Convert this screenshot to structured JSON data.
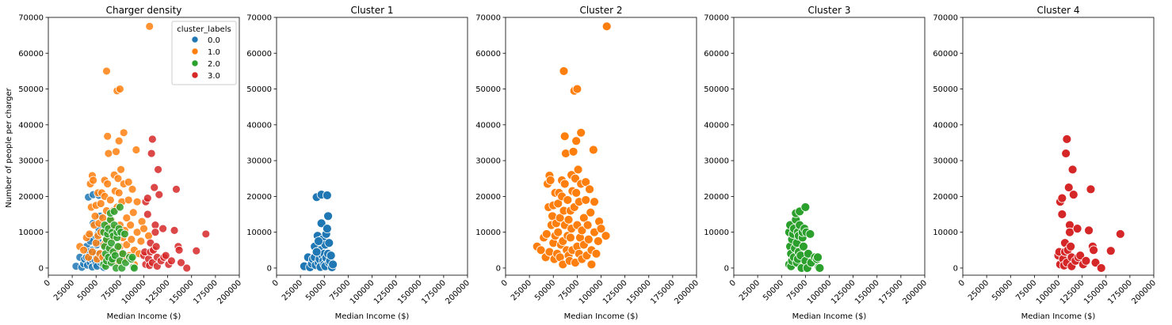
{
  "figure": {
    "ylabel": "Number of people per charger"
  },
  "legend": {
    "title": "cluster_labels",
    "entries": [
      {
        "label": "0.0",
        "color": "#1f77b4"
      },
      {
        "label": "1.0",
        "color": "#ff7f0e"
      },
      {
        "label": "2.0",
        "color": "#2ca02c"
      },
      {
        "label": "3.0",
        "color": "#d62728"
      }
    ]
  },
  "chart_data": [
    {
      "type": "scatter",
      "title": "Charger density",
      "xlabel": "Median Income ($)",
      "ylabel": "Number of people per charger",
      "xlim": [
        0,
        200000
      ],
      "ylim": [
        -2000,
        70000
      ],
      "xticks": [
        "0",
        "25000",
        "50000",
        "75000",
        "100000",
        "125000",
        "150000",
        "175000",
        "200000"
      ],
      "yticks": [
        "0",
        "10000",
        "20000",
        "30000",
        "40000",
        "50000",
        "60000",
        "70000"
      ],
      "legend": "upper-right",
      "series": [
        {
          "name": "0.0",
          "cluster": 0,
          "color": "#1f77b4"
        },
        {
          "name": "1.0",
          "cluster": 1,
          "color": "#ff7f0e"
        },
        {
          "name": "2.0",
          "cluster": 2,
          "color": "#2ca02c"
        },
        {
          "name": "3.0",
          "cluster": 3,
          "color": "#d62728"
        }
      ]
    },
    {
      "type": "scatter",
      "title": "Cluster 1",
      "xlabel": "Median Income ($)",
      "xlim": [
        0,
        200000
      ],
      "ylim": [
        -2000,
        70000
      ],
      "cluster": 0,
      "color": "#1f77b4",
      "xticks": [
        "0",
        "25000",
        "50000",
        "75000",
        "100000",
        "125000",
        "150000",
        "175000",
        "200000"
      ],
      "yticks": [
        "0",
        "10000",
        "20000",
        "30000",
        "40000",
        "50000",
        "60000",
        "70000"
      ],
      "points": [
        [
          29000,
          500
        ],
        [
          33000,
          3000
        ],
        [
          35000,
          200
        ],
        [
          37000,
          1200
        ],
        [
          38000,
          2500
        ],
        [
          40000,
          6000
        ],
        [
          40000,
          3000
        ],
        [
          41000,
          800
        ],
        [
          42000,
          19800
        ],
        [
          43000,
          9000
        ],
        [
          44000,
          1500
        ],
        [
          45000,
          2500
        ],
        [
          46000,
          5000
        ],
        [
          46000,
          300
        ],
        [
          47000,
          20500
        ],
        [
          47000,
          12500
        ],
        [
          48000,
          8000
        ],
        [
          48000,
          3500
        ],
        [
          49000,
          2000
        ],
        [
          50000,
          4000
        ],
        [
          50000,
          1000
        ],
        [
          51000,
          6500
        ],
        [
          51000,
          500
        ],
        [
          52000,
          9500
        ],
        [
          52000,
          2800
        ],
        [
          53000,
          20300
        ],
        [
          53000,
          11000
        ],
        [
          54000,
          14500
        ],
        [
          54000,
          4000
        ],
        [
          55000,
          1500
        ],
        [
          55000,
          7000
        ],
        [
          56000,
          2000
        ],
        [
          57000,
          3500
        ],
        [
          58000,
          200
        ],
        [
          59000,
          1000
        ],
        [
          44000,
          7500
        ],
        [
          42000,
          4500
        ]
      ]
    },
    {
      "type": "scatter",
      "title": "Cluster 2",
      "xlabel": "Median Income ($)",
      "xlim": [
        0,
        200000
      ],
      "ylim": [
        -2000,
        70000
      ],
      "cluster": 1,
      "color": "#ff7f0e",
      "xticks": [
        "0",
        "25000",
        "50000",
        "75000",
        "100000",
        "125000",
        "150000",
        "175000",
        "200000"
      ],
      "yticks": [
        "0",
        "10000",
        "20000",
        "30000",
        "40000",
        "50000",
        "60000",
        "70000"
      ],
      "points": [
        [
          33000,
          6000
        ],
        [
          37000,
          5000
        ],
        [
          40000,
          8500
        ],
        [
          42000,
          3000
        ],
        [
          43000,
          9500
        ],
        [
          44000,
          23500
        ],
        [
          45000,
          17000
        ],
        [
          46000,
          25800
        ],
        [
          46000,
          4500
        ],
        [
          47000,
          24500
        ],
        [
          48000,
          12000
        ],
        [
          49000,
          14500
        ],
        [
          50000,
          17500
        ],
        [
          50000,
          7000
        ],
        [
          51000,
          2500
        ],
        [
          52000,
          21000
        ],
        [
          52000,
          9000
        ],
        [
          53000,
          12500
        ],
        [
          54000,
          4000
        ],
        [
          55000,
          18000
        ],
        [
          55000,
          10000
        ],
        [
          56000,
          21000
        ],
        [
          57000,
          14000
        ],
        [
          57000,
          3000
        ],
        [
          58000,
          6500
        ],
        [
          59000,
          24500
        ],
        [
          59000,
          20000
        ],
        [
          60000,
          7500
        ],
        [
          60000,
          1000
        ],
        [
          61000,
          55000
        ],
        [
          61000,
          16000
        ],
        [
          62000,
          23500
        ],
        [
          62000,
          12000
        ],
        [
          62000,
          36800
        ],
        [
          63000,
          32000
        ],
        [
          64000,
          5000
        ],
        [
          65000,
          19000
        ],
        [
          65000,
          9000
        ],
        [
          66000,
          13500
        ],
        [
          66000,
          3500
        ],
        [
          67000,
          2000
        ],
        [
          68000,
          16000
        ],
        [
          68000,
          8500
        ],
        [
          69000,
          26000
        ],
        [
          69000,
          11000
        ],
        [
          70000,
          21500
        ],
        [
          70000,
          5000
        ],
        [
          71000,
          32500
        ],
        [
          72000,
          49500
        ],
        [
          72000,
          17000
        ],
        [
          73000,
          25000
        ],
        [
          73000,
          1500
        ],
        [
          74000,
          35500
        ],
        [
          74000,
          21000
        ],
        [
          75000,
          50000
        ],
        [
          75000,
          12000
        ],
        [
          75000,
          6000
        ],
        [
          76000,
          27500
        ],
        [
          77000,
          18500
        ],
        [
          77000,
          4000
        ],
        [
          78000,
          8500
        ],
        [
          79000,
          37800
        ],
        [
          79000,
          23500
        ],
        [
          80000,
          10500
        ],
        [
          80000,
          2500
        ],
        [
          82000,
          14000
        ],
        [
          82000,
          6500
        ],
        [
          84000,
          24000
        ],
        [
          84000,
          19000
        ],
        [
          85000,
          3500
        ],
        [
          86000,
          12000
        ],
        [
          87000,
          8000
        ],
        [
          88000,
          22000
        ],
        [
          89000,
          15500
        ],
        [
          90000,
          5000
        ],
        [
          90000,
          1000
        ],
        [
          92000,
          33000
        ],
        [
          93000,
          18500
        ],
        [
          93000,
          10000
        ],
        [
          95000,
          4000
        ],
        [
          97000,
          7500
        ],
        [
          98000,
          13000
        ],
        [
          100000,
          11000
        ],
        [
          105000,
          9000
        ],
        [
          106000,
          67500
        ]
      ]
    },
    {
      "type": "scatter",
      "title": "Cluster 3",
      "xlabel": "Median Income ($)",
      "xlim": [
        0,
        200000
      ],
      "ylim": [
        -2000,
        70000
      ],
      "cluster": 2,
      "color": "#2ca02c",
      "xticks": [
        "0",
        "25000",
        "50000",
        "75000",
        "100000",
        "125000",
        "150000",
        "175000",
        "200000"
      ],
      "yticks": [
        "0",
        "10000",
        "20000",
        "30000",
        "40000",
        "50000",
        "60000",
        "70000"
      ],
      "points": [
        [
          58000,
          10000
        ],
        [
          58000,
          1000
        ],
        [
          59000,
          12000
        ],
        [
          59000,
          6000
        ],
        [
          60000,
          4000
        ],
        [
          60000,
          500
        ],
        [
          61000,
          2000
        ],
        [
          61000,
          8000
        ],
        [
          62000,
          9500
        ],
        [
          63000,
          11000
        ],
        [
          63000,
          3000
        ],
        [
          64000,
          5500
        ],
        [
          65000,
          13500
        ],
        [
          65000,
          15300
        ],
        [
          66000,
          1500
        ],
        [
          66000,
          7000
        ],
        [
          67000,
          10000
        ],
        [
          67000,
          2500
        ],
        [
          68000,
          9000
        ],
        [
          68000,
          4500
        ],
        [
          69000,
          12000
        ],
        [
          69000,
          15800
        ],
        [
          70000,
          3500
        ],
        [
          71000,
          0
        ],
        [
          72000,
          8500
        ],
        [
          72000,
          10000
        ],
        [
          73000,
          6000
        ],
        [
          74000,
          11000
        ],
        [
          75000,
          2000
        ],
        [
          75000,
          17000
        ],
        [
          76000,
          10000
        ],
        [
          77000,
          0
        ],
        [
          78000,
          4000
        ],
        [
          80000,
          9500
        ],
        [
          81000,
          1500
        ],
        [
          85000,
          3000
        ],
        [
          87000,
          2500
        ],
        [
          88000,
          3000
        ],
        [
          89000,
          200
        ],
        [
          90000,
          0
        ]
      ]
    },
    {
      "type": "scatter",
      "title": "Cluster 4",
      "xlabel": "Median Income ($)",
      "xlim": [
        0,
        200000
      ],
      "ylim": [
        -2000,
        70000
      ],
      "cluster": 3,
      "color": "#d62728",
      "xticks": [
        "0",
        "25000",
        "50000",
        "75000",
        "100000",
        "125000",
        "150000",
        "175000",
        "200000"
      ],
      "yticks": [
        "0",
        "10000",
        "20000",
        "30000",
        "40000",
        "50000",
        "60000",
        "70000"
      ],
      "points": [
        [
          100000,
          3500
        ],
        [
          101000,
          4500
        ],
        [
          102000,
          18500
        ],
        [
          102000,
          1000
        ],
        [
          104000,
          19500
        ],
        [
          104000,
          15000
        ],
        [
          105000,
          2500
        ],
        [
          106000,
          700
        ],
        [
          107000,
          7000
        ],
        [
          107000,
          4500
        ],
        [
          108000,
          32000
        ],
        [
          109000,
          36000
        ],
        [
          109000,
          1500
        ],
        [
          110000,
          5000
        ],
        [
          111000,
          22500
        ],
        [
          112000,
          12000
        ],
        [
          112000,
          10000
        ],
        [
          113000,
          6000
        ],
        [
          114000,
          3000
        ],
        [
          114000,
          500
        ],
        [
          115000,
          27500
        ],
        [
          116000,
          20500
        ],
        [
          118000,
          2000
        ],
        [
          120000,
          11000
        ],
        [
          121000,
          3000
        ],
        [
          123000,
          3500
        ],
        [
          126000,
          1000
        ],
        [
          129000,
          2000
        ],
        [
          132000,
          10500
        ],
        [
          134000,
          22000
        ],
        [
          136000,
          6000
        ],
        [
          137000,
          5000
        ],
        [
          139000,
          1500
        ],
        [
          145000,
          0
        ],
        [
          155000,
          4800
        ],
        [
          165000,
          9500
        ]
      ]
    }
  ]
}
